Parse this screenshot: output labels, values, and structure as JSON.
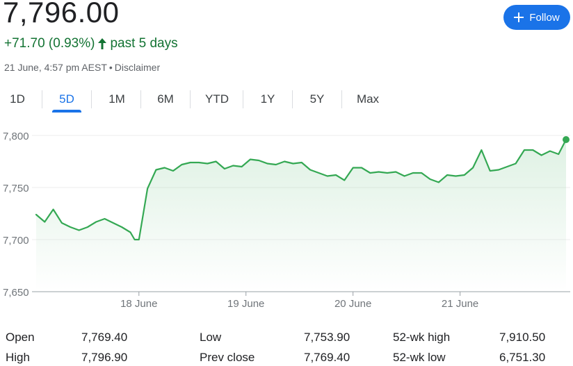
{
  "price": "7,796.00",
  "change": {
    "amount": "+71.70 (0.93%)",
    "period": "past 5 days",
    "color": "#137333"
  },
  "meta": {
    "timestamp": "21 June, 4:57 pm AEST",
    "disclaimer": "Disclaimer"
  },
  "follow": {
    "label": "Follow",
    "icon": "plus-icon",
    "color": "#1a73e8"
  },
  "tabs": [
    {
      "label": "1D",
      "active": false
    },
    {
      "label": "5D",
      "active": true
    },
    {
      "label": "1M",
      "active": false
    },
    {
      "label": "6M",
      "active": false
    },
    {
      "label": "YTD",
      "active": false
    },
    {
      "label": "1Y",
      "active": false
    },
    {
      "label": "5Y",
      "active": false
    },
    {
      "label": "Max",
      "active": false
    }
  ],
  "chart_data": {
    "type": "area",
    "line_color": "#34a853",
    "ylim": [
      7650,
      7810
    ],
    "y_ticks": [
      {
        "value": 7800,
        "label": "7,800"
      },
      {
        "value": 7750,
        "label": "7,750"
      },
      {
        "value": 7700,
        "label": "7,700"
      },
      {
        "value": 7650,
        "label": "7,650"
      }
    ],
    "x_ticks": [
      {
        "x": 9.6,
        "label": "18 June"
      },
      {
        "x": 19.6,
        "label": "19 June"
      },
      {
        "x": 29.6,
        "label": "20 June"
      },
      {
        "x": 39.6,
        "label": "21 June"
      }
    ],
    "xlim": [
      0,
      49.5
    ],
    "grid": true,
    "x": [
      0,
      0.8,
      1.6,
      2.4,
      3.2,
      4.0,
      4.8,
      5.6,
      6.4,
      7.2,
      8.0,
      8.8,
      9.2,
      9.6,
      10.4,
      11.2,
      12.0,
      12.8,
      13.6,
      14.4,
      15.2,
      16.0,
      16.8,
      17.6,
      18.4,
      19.2,
      20.0,
      20.8,
      21.6,
      22.4,
      23.2,
      24.0,
      24.8,
      25.6,
      26.4,
      27.2,
      28.0,
      28.8,
      29.6,
      30.4,
      31.2,
      32.0,
      32.8,
      33.6,
      34.4,
      35.2,
      36.0,
      36.8,
      37.6,
      38.4,
      39.2,
      40.0,
      40.8,
      41.6,
      42.4,
      43.2,
      44.0,
      44.8,
      45.6,
      46.4,
      47.2,
      48.0,
      48.8,
      49.5
    ],
    "values": [
      7724,
      7717,
      7729,
      7716,
      7712,
      7709,
      7712,
      7717,
      7720,
      7716,
      7712,
      7707,
      7700,
      7700,
      7749,
      7767,
      7769,
      7766,
      7772,
      7774,
      7774,
      7773,
      7775,
      7768,
      7771,
      7770,
      7777,
      7776,
      7773,
      7772,
      7775,
      7773,
      7774,
      7767,
      7764,
      7761,
      7762,
      7757,
      7769,
      7769,
      7764,
      7765,
      7764,
      7765,
      7761,
      7764,
      7764,
      7758,
      7755,
      7762,
      7761,
      7762,
      7769,
      7786,
      7766,
      7767,
      7770,
      7773,
      7786,
      7786,
      7781,
      7785,
      7782,
      7796
    ]
  },
  "stats": [
    {
      "label": "Open",
      "value": "7,769.40"
    },
    {
      "label": "High",
      "value": "7,796.90"
    },
    {
      "label": "Low",
      "value": "7,753.90"
    },
    {
      "label": "Prev close",
      "value": "7,769.40"
    },
    {
      "label": "52-wk high",
      "value": "7,910.50"
    },
    {
      "label": "52-wk low",
      "value": "6,751.30"
    }
  ]
}
